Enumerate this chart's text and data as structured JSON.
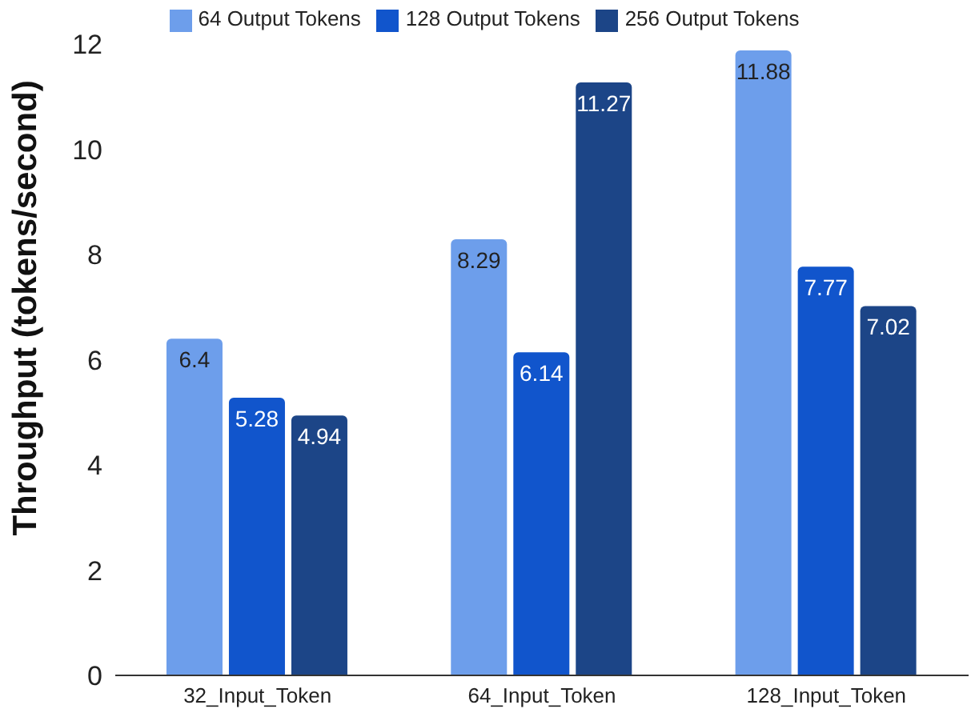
{
  "chart_data": {
    "type": "bar",
    "ylabel": "Throughput (tokens/second)",
    "categories": [
      "32_Input_Token",
      "64_Input_Token",
      "128_Input_Token"
    ],
    "series": [
      {
        "name": "64 Output Tokens",
        "color": "#6d9eeb",
        "values": [
          6.4,
          8.29,
          11.88
        ]
      },
      {
        "name": "128 Output Tokens",
        "color": "#1155cc",
        "values": [
          5.28,
          6.14,
          7.77
        ]
      },
      {
        "name": "256 Output Tokens",
        "color": "#1c4587",
        "values": [
          4.94,
          11.27,
          7.02
        ]
      }
    ],
    "ylim": [
      0,
      12
    ],
    "yticks": [
      0,
      2,
      4,
      6,
      8,
      10,
      12
    ],
    "grid": false,
    "legend": "top",
    "data_labels": true
  }
}
